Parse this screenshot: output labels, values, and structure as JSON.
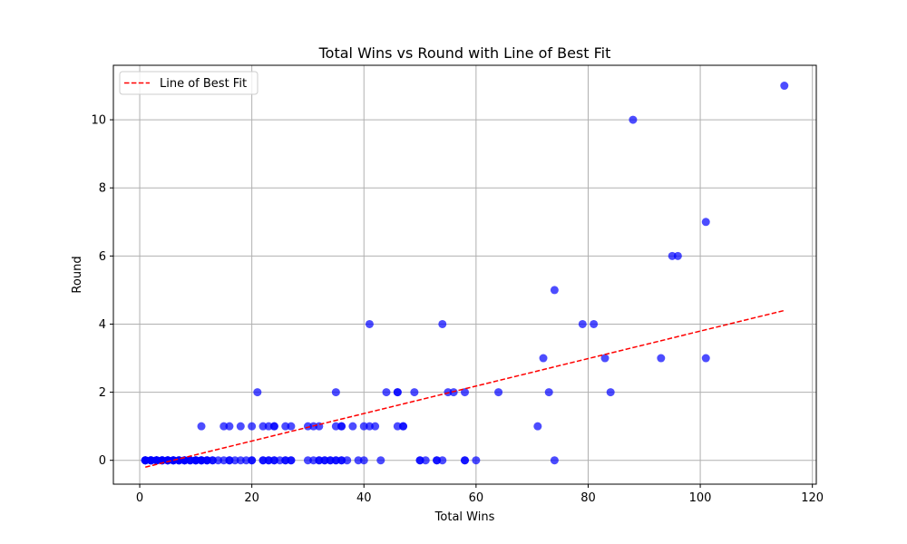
{
  "chart_data": {
    "type": "scatter",
    "title": "Total Wins vs Round with Line of Best Fit",
    "xlabel": "Total Wins",
    "ylabel": "Round",
    "xlim": [
      -4.7,
      120.7
    ],
    "ylim": [
      -0.7,
      11.6
    ],
    "xticks": [
      0,
      20,
      40,
      60,
      80,
      100,
      120
    ],
    "yticks": [
      0,
      2,
      4,
      6,
      8,
      10
    ],
    "grid": true,
    "legend_position": "top-left",
    "colors": {
      "points": "#0000ff",
      "fit_line": "#ff0000",
      "grid": "#b0b0b0"
    },
    "series": [
      {
        "kind": "points",
        "x": [
          1,
          1,
          1,
          1,
          1,
          2,
          2,
          2,
          2,
          2,
          2,
          3,
          3,
          3,
          3,
          3,
          3,
          4,
          4,
          4,
          4,
          4,
          5,
          5,
          5,
          5,
          5,
          6,
          6,
          6,
          6,
          7,
          7,
          7,
          7,
          8,
          8,
          8,
          8,
          9,
          9,
          9,
          10,
          10,
          10,
          10,
          11,
          11,
          11,
          11,
          12,
          12,
          12,
          13,
          13,
          14,
          15,
          16,
          16,
          17,
          18,
          19,
          20,
          20,
          22,
          22,
          23,
          23,
          24,
          24,
          25,
          26,
          26,
          27,
          27,
          30,
          31,
          32,
          32,
          33,
          33,
          34,
          34,
          35,
          35,
          36,
          36,
          37,
          39,
          40,
          43,
          50,
          50,
          51,
          53,
          53,
          54,
          58,
          58,
          60,
          74,
          11,
          15,
          16,
          18,
          20,
          22,
          23,
          24,
          24,
          26,
          27,
          30,
          31,
          32,
          35,
          36,
          36,
          38,
          40,
          41,
          42,
          46,
          47,
          47,
          71,
          21,
          35,
          44,
          46,
          46,
          49,
          55,
          56,
          58,
          64,
          73,
          84,
          72,
          83,
          93,
          101,
          41,
          54,
          79,
          81,
          74,
          95,
          96,
          101,
          88,
          115
        ],
        "y": [
          0,
          0,
          0,
          0,
          0,
          0,
          0,
          0,
          0,
          0,
          0,
          0,
          0,
          0,
          0,
          0,
          0,
          0,
          0,
          0,
          0,
          0,
          0,
          0,
          0,
          0,
          0,
          0,
          0,
          0,
          0,
          0,
          0,
          0,
          0,
          0,
          0,
          0,
          0,
          0,
          0,
          0,
          0,
          0,
          0,
          0,
          0,
          0,
          0,
          0,
          0,
          0,
          0,
          0,
          0,
          0,
          0,
          0,
          0,
          0,
          0,
          0,
          0,
          0,
          0,
          0,
          0,
          0,
          0,
          0,
          0,
          0,
          0,
          0,
          0,
          0,
          0,
          0,
          0,
          0,
          0,
          0,
          0,
          0,
          0,
          0,
          0,
          0,
          0,
          0,
          0,
          0,
          0,
          0,
          0,
          0,
          0,
          0,
          0,
          0,
          0,
          1,
          1,
          1,
          1,
          1,
          1,
          1,
          1,
          1,
          1,
          1,
          1,
          1,
          1,
          1,
          1,
          1,
          1,
          1,
          1,
          1,
          1,
          1,
          1,
          1,
          2,
          2,
          2,
          2,
          2,
          2,
          2,
          2,
          2,
          2,
          2,
          2,
          3,
          3,
          3,
          3,
          4,
          4,
          4,
          4,
          5,
          6,
          6,
          7,
          10,
          11
        ]
      },
      {
        "kind": "line",
        "name": "Line of Best Fit",
        "x": [
          1,
          115
        ],
        "y": [
          -0.2,
          4.4
        ]
      }
    ]
  }
}
